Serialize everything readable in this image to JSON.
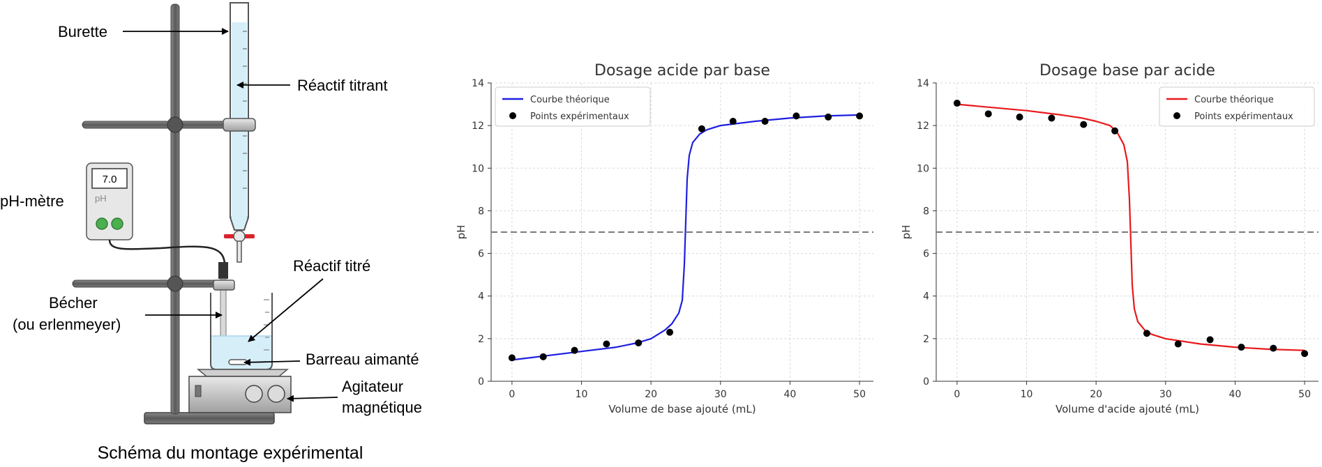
{
  "setup": {
    "caption": "Schéma du montage expérimental",
    "labels": {
      "burette": "Burette",
      "titrant": "Réactif titrant",
      "phmeter": "pH-mètre",
      "titre": "Réactif titré",
      "becher_1": "Bécher",
      "becher_2": "(ou erlenmeyer)",
      "barreau": "Barreau aimanté",
      "agitateur_1": "Agitateur",
      "agitateur_2": "magnétique"
    },
    "meter_display": "7.0",
    "meter_unit": "pH",
    "colors": {
      "liquid": "#d6eef8",
      "stand": "#6b6b6b",
      "stopcock": "#d9232d",
      "meter_buttons": "#4caf50"
    }
  },
  "chart_data": [
    {
      "type": "line",
      "title": "Dosage acide par base",
      "xlabel": "Volume de base ajouté (mL)",
      "ylabel": "pH",
      "xlim": [
        -3,
        52
      ],
      "ylim": [
        0,
        14
      ],
      "xticks": [
        0,
        10,
        20,
        30,
        40,
        50
      ],
      "yticks": [
        0,
        2,
        4,
        6,
        8,
        10,
        12,
        14
      ],
      "grid": true,
      "legend_position": "top-left",
      "reference_line": {
        "y": 7,
        "style": "dashed"
      },
      "color": "#1f1fe0",
      "series": [
        {
          "name": "Courbe théorique",
          "kind": "line",
          "x": [
            0,
            5,
            10,
            15,
            18,
            20,
            22,
            23,
            24,
            24.5,
            24.8,
            25,
            25.2,
            25.5,
            26,
            27,
            28,
            30,
            35,
            40,
            45,
            50
          ],
          "y": [
            1.0,
            1.2,
            1.4,
            1.6,
            1.8,
            2.0,
            2.4,
            2.7,
            3.2,
            3.8,
            5.5,
            7.5,
            9.5,
            10.6,
            11.2,
            11.6,
            11.8,
            12.0,
            12.2,
            12.35,
            12.45,
            12.5
          ]
        },
        {
          "name": "Points expérimentaux",
          "kind": "scatter",
          "x": [
            0,
            4.5,
            9,
            13.6,
            18.2,
            22.7,
            27.3,
            31.8,
            36.4,
            40.9,
            45.5,
            50
          ],
          "y": [
            1.1,
            1.15,
            1.45,
            1.75,
            1.8,
            2.3,
            11.85,
            12.2,
            12.2,
            12.45,
            12.4,
            12.45
          ]
        }
      ]
    },
    {
      "type": "line",
      "title": "Dosage base par acide",
      "xlabel": "Volume d'acide ajouté (mL)",
      "ylabel": "pH",
      "xlim": [
        -3,
        52
      ],
      "ylim": [
        0,
        14
      ],
      "xticks": [
        0,
        10,
        20,
        30,
        40,
        50
      ],
      "yticks": [
        0,
        2,
        4,
        6,
        8,
        10,
        12,
        14
      ],
      "grid": true,
      "legend_position": "top-right",
      "reference_line": {
        "y": 7,
        "style": "dashed"
      },
      "color": "#e8191c",
      "series": [
        {
          "name": "Courbe théorique",
          "kind": "line",
          "x": [
            0,
            5,
            10,
            15,
            18,
            20,
            22,
            23,
            24,
            24.5,
            24.8,
            25,
            25.2,
            25.5,
            26,
            27,
            28,
            30,
            35,
            40,
            45,
            50
          ],
          "y": [
            13.0,
            12.85,
            12.7,
            12.5,
            12.35,
            12.2,
            12.0,
            11.7,
            11.1,
            10.3,
            8.5,
            6.5,
            4.5,
            3.4,
            2.8,
            2.4,
            2.2,
            2.0,
            1.75,
            1.6,
            1.5,
            1.45
          ]
        },
        {
          "name": "Points expérimentaux",
          "kind": "scatter",
          "x": [
            0,
            4.5,
            9,
            13.6,
            18.2,
            22.7,
            27.3,
            31.8,
            36.4,
            40.9,
            45.5,
            50
          ],
          "y": [
            13.05,
            12.55,
            12.4,
            12.35,
            12.05,
            11.75,
            2.25,
            1.75,
            1.95,
            1.6,
            1.55,
            1.3
          ]
        }
      ]
    }
  ]
}
